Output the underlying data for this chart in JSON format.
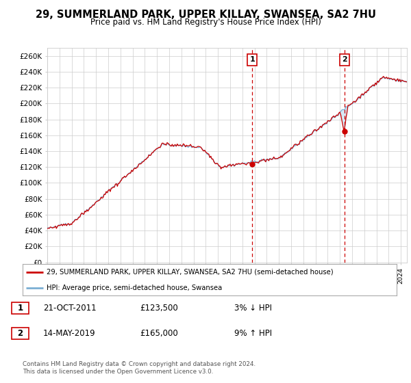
{
  "title": "29, SUMMERLAND PARK, UPPER KILLAY, SWANSEA, SA2 7HU",
  "subtitle": "Price paid vs. HM Land Registry's House Price Index (HPI)",
  "xlim_start": 1995.0,
  "xlim_end": 2024.5,
  "ylim": [
    0,
    270000
  ],
  "yticks": [
    0,
    20000,
    40000,
    60000,
    80000,
    100000,
    120000,
    140000,
    160000,
    180000,
    200000,
    220000,
    240000,
    260000
  ],
  "ytick_labels": [
    "£0",
    "£20K",
    "£40K",
    "£60K",
    "£80K",
    "£100K",
    "£120K",
    "£140K",
    "£160K",
    "£180K",
    "£200K",
    "£220K",
    "£240K",
    "£260K"
  ],
  "line1_color": "#cc0000",
  "line2_color": "#7bafd4",
  "fill_color": "#d6e8f5",
  "point1_x": 2011.81,
  "point1_y": 123500,
  "point2_x": 2019.37,
  "point2_y": 165000,
  "vline1_x": 2011.81,
  "vline2_x": 2019.37,
  "label1": "29, SUMMERLAND PARK, UPPER KILLAY, SWANSEA, SA2 7HU (semi-detached house)",
  "label2": "HPI: Average price, semi-detached house, Swansea",
  "note1_num": "1",
  "note1_date": "21-OCT-2011",
  "note1_price": "£123,500",
  "note1_hpi": "3% ↓ HPI",
  "note2_num": "2",
  "note2_date": "14-MAY-2019",
  "note2_price": "£165,000",
  "note2_hpi": "9% ↑ HPI",
  "copyright": "Contains HM Land Registry data © Crown copyright and database right 2024.\nThis data is licensed under the Open Government Licence v3.0.",
  "background_color": "#ffffff",
  "grid_color": "#cccccc",
  "title_fontsize": 10.5,
  "subtitle_fontsize": 8.5,
  "hpi_seed": 42,
  "price_seed": 99
}
